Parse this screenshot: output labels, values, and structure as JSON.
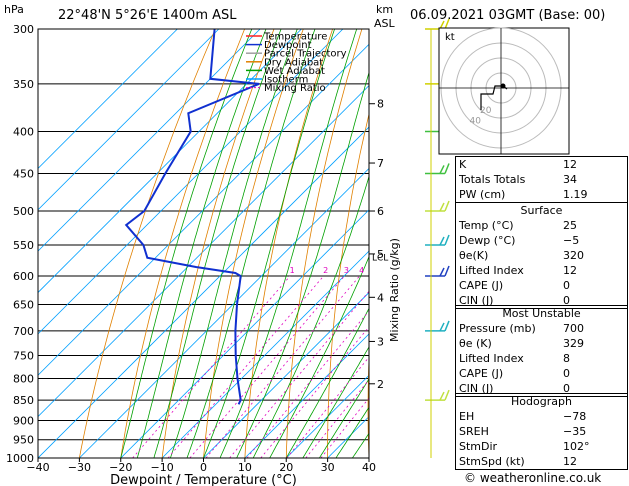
{
  "header": {
    "location": "22°48'N  5°26'E  1400m  ASL",
    "datetime": "06.09.2021  03GMT  (Base: 00)",
    "units_hpa": "hPa",
    "units_km": "km",
    "units_asl": "ASL"
  },
  "chart_data": {
    "type": "skew-t",
    "pressure_levels_hpa": [
      300,
      350,
      400,
      450,
      500,
      550,
      600,
      650,
      700,
      750,
      800,
      850,
      900,
      950,
      1000
    ],
    "pressure_tick_labels": [
      "300",
      "350",
      "400",
      "450",
      "500",
      "550",
      "600",
      "650",
      "700",
      "750",
      "800",
      "850",
      "900",
      "950",
      "1000"
    ],
    "x_ticks": [
      -40,
      -30,
      -20,
      -10,
      0,
      10,
      20,
      30,
      40
    ],
    "x_tick_labels": [
      "−40",
      "−30",
      "−20",
      "−10",
      "0",
      "10",
      "20",
      "30",
      "40"
    ],
    "xlabel": "Dewpoint / Temperature (°C)",
    "right_label": "Mixing Ratio (g/kg)",
    "height_km": [
      {
        "label": "8",
        "p": 370
      },
      {
        "label": "7",
        "p": 437
      },
      {
        "label": "6",
        "p": 500
      },
      {
        "label": "5",
        "p": 564
      },
      {
        "label": "4",
        "p": 637
      },
      {
        "label": "3",
        "p": 721
      },
      {
        "label": "2",
        "p": 812
      }
    ],
    "lcl_label": "LCL",
    "lcl_p": 568,
    "mixing_ratio_labels": [
      "1",
      "2",
      "3",
      "4",
      "6",
      "8",
      "10",
      "15",
      "20",
      "25"
    ],
    "mixing_ratio_values": [
      1,
      2,
      3,
      4,
      6,
      8,
      10,
      15,
      20,
      25
    ],
    "temperature": [
      {
        "p": 860,
        "t": 32
      },
      {
        "p": 850,
        "t": 30
      },
      {
        "p": 800,
        "t": 25.6
      },
      {
        "p": 750,
        "t": 21
      },
      {
        "p": 700,
        "t": 16.5
      },
      {
        "p": 650,
        "t": 12
      },
      {
        "p": 600,
        "t": 7.5
      },
      {
        "p": 570,
        "t": 5.2
      },
      {
        "p": 550,
        "t": 5.5
      },
      {
        "p": 500,
        "t": 0
      },
      {
        "p": 450,
        "t": -7
      },
      {
        "p": 400,
        "t": -15
      },
      {
        "p": 370,
        "t": -20.5
      },
      {
        "p": 350,
        "t": -24.5
      },
      {
        "p": 300,
        "t": -34.5
      }
    ],
    "dewpoint": [
      {
        "p": 860,
        "t": -4.5
      },
      {
        "p": 850,
        "t": -5
      },
      {
        "p": 800,
        "t": -11
      },
      {
        "p": 750,
        "t": -17
      },
      {
        "p": 700,
        "t": -23
      },
      {
        "p": 650,
        "t": -29
      },
      {
        "p": 600,
        "t": -35
      },
      {
        "p": 595,
        "t": -37
      },
      {
        "p": 585,
        "t": -48
      },
      {
        "p": 570,
        "t": -62
      },
      {
        "p": 550,
        "t": -66
      },
      {
        "p": 520,
        "t": -75
      },
      {
        "p": 500,
        "t": -74
      },
      {
        "p": 450,
        "t": -78
      },
      {
        "p": 400,
        "t": -82
      },
      {
        "p": 380,
        "t": -87
      },
      {
        "p": 350,
        "t": -77
      },
      {
        "p": 345,
        "t": -90
      },
      {
        "p": 300,
        "t": -101
      }
    ],
    "parcel": [
      {
        "p": 850,
        "t": 30
      },
      {
        "p": 800,
        "t": 25.5
      },
      {
        "p": 750,
        "t": 21
      },
      {
        "p": 700,
        "t": 16
      },
      {
        "p": 650,
        "t": 11
      },
      {
        "p": 600,
        "t": 5.8
      },
      {
        "p": 568,
        "t": 2.8
      },
      {
        "p": 550,
        "t": -1.5
      },
      {
        "p": 500,
        "t": -7.8
      },
      {
        "p": 450,
        "t": -16
      },
      {
        "p": 400,
        "t": -22.5
      },
      {
        "p": 350,
        "t": -31
      },
      {
        "p": 300,
        "t": -40
      }
    ],
    "legend": [
      "Temperature",
      "Dewpoint",
      "Parcel Trajectory",
      "Dry Adiabat",
      "Wet Adiabat",
      "Isotherm",
      "Mixing Ratio"
    ],
    "legend_placement": "top-right",
    "colors": {
      "temperature": "#ff2020",
      "dewpoint": "#1030d0",
      "parcel": "#a0a0a0",
      "dry_adiabat": "#e08000",
      "wet_adiabat": "#00a000",
      "isotherm": "#00a0ff",
      "mixing_ratio": "#e000c0"
    }
  },
  "hodograph": {
    "label": "kt",
    "ring_labels": [
      "20",
      "40"
    ]
  },
  "wind_barbs_note": "colors by level",
  "indices": [
    {
      "label": "K",
      "value": "12"
    },
    {
      "label": "Totals Totals",
      "value": "34"
    },
    {
      "label": "PW (cm)",
      "value": "1.19"
    }
  ],
  "surface": {
    "title": "Surface",
    "rows": [
      {
        "label": "Temp (°C)",
        "value": "25"
      },
      {
        "label": "Dewp (°C)",
        "value": "−5"
      },
      {
        "label": "θe(K)",
        "value": "320"
      },
      {
        "label": "Lifted Index",
        "value": "12"
      },
      {
        "label": "CAPE (J)",
        "value": "0"
      },
      {
        "label": "CIN (J)",
        "value": "0"
      }
    ]
  },
  "most_unstable": {
    "title": "Most Unstable",
    "rows": [
      {
        "label": "Pressure (mb)",
        "value": "700"
      },
      {
        "label": "θe (K)",
        "value": "329"
      },
      {
        "label": "Lifted Index",
        "value": "8"
      },
      {
        "label": "CAPE (J)",
        "value": "0"
      },
      {
        "label": "CIN (J)",
        "value": "0"
      }
    ]
  },
  "hodograph_table": {
    "title": "Hodograph",
    "rows": [
      {
        "label": "EH",
        "value": "−78"
      },
      {
        "label": "SREH",
        "value": "−35"
      },
      {
        "label": "StmDir",
        "value": "102°"
      },
      {
        "label": "StmSpd (kt)",
        "value": "12"
      }
    ]
  },
  "footer": {
    "credit": "© weatheronline.co.uk"
  }
}
